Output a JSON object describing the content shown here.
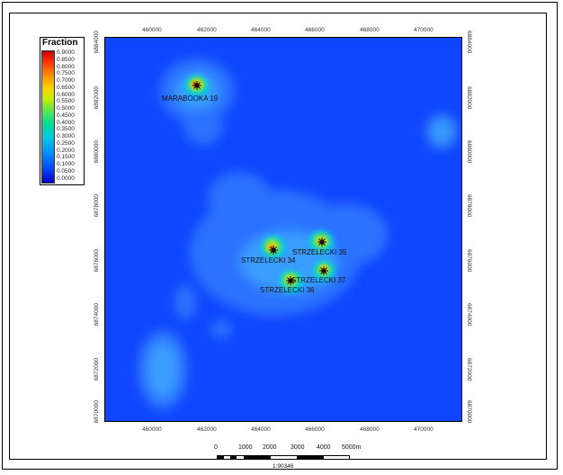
{
  "legend": {
    "title": "Fraction",
    "values": [
      "0.9000",
      "0.8500",
      "0.8000",
      "0.7500",
      "0.7000",
      "0.6500",
      "0.6000",
      "0.5500",
      "0.5000",
      "0.4500",
      "0.4000",
      "0.3500",
      "0.3000",
      "0.2500",
      "0.2000",
      "0.1500",
      "0.1000",
      "0.0500",
      "0.0000"
    ]
  },
  "x_ticks": [
    "460000",
    "462000",
    "464000",
    "466000",
    "468000",
    "470000"
  ],
  "y_ticks": [
    "6884000",
    "6882000",
    "6880000",
    "6878000",
    "6876000",
    "6874000",
    "6872000",
    "6870000"
  ],
  "wells": {
    "marabooka19": "MARABOOKA 19",
    "strzelecki34": "STRZELECKI 34",
    "strzelecki35": "STRZELECKI 35",
    "strzelecki36": "STRZELECKI 36",
    "strzelecki37": "STRZELECKI 37"
  },
  "scale": {
    "labels": [
      "0",
      "1000",
      "2000",
      "3000",
      "4000",
      "5000m"
    ],
    "ratio": "1:90346"
  },
  "colors": {
    "background_field": "#1046ff",
    "low": "#2f8bff",
    "mid": "#00d0d0",
    "high": "#ffd200",
    "peak": "#e02000"
  }
}
